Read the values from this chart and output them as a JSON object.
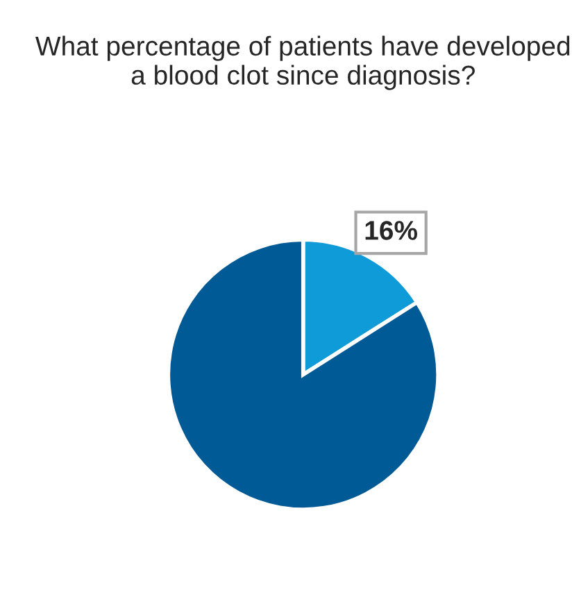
{
  "chart_data": {
    "type": "pie",
    "title": "What percentage of patients have developed a blood clot since diagnosis?",
    "categories": [
      null,
      null
    ],
    "values": [
      16,
      84
    ],
    "colors": [
      "#0f9ad8",
      "#005a96"
    ],
    "value_labels": [
      "16%",
      null
    ]
  }
}
